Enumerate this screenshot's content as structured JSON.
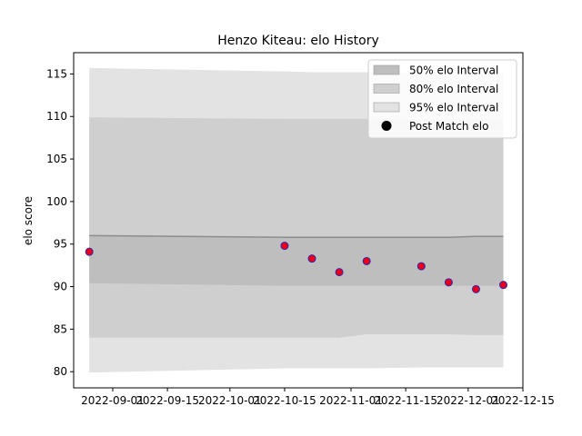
{
  "chart_data": {
    "type": "interval-scatter",
    "title": "Henzo Kiteau: elo History",
    "ylabel": "elo score",
    "x": [
      "2022-08-26",
      "2022-10-15",
      "2022-10-22",
      "2022-10-29",
      "2022-11-05",
      "2022-11-19",
      "2022-11-26",
      "2022-12-03",
      "2022-12-10"
    ],
    "xlim": [
      "2022-08-22",
      "2022-12-15"
    ],
    "xticks": [
      "2022-09-01",
      "2022-09-15",
      "2022-10-01",
      "2022-10-15",
      "2022-11-01",
      "2022-11-15",
      "2022-12-01",
      "2022-12-15"
    ],
    "ylim": [
      78.1,
      117.5
    ],
    "yticks": [
      80,
      85,
      90,
      95,
      100,
      105,
      110,
      115
    ],
    "bands": [
      {
        "name": "95% elo Interval",
        "color": "#e3e3e3",
        "lower": [
          79.9,
          80.4,
          80.4,
          80.4,
          80.4,
          80.5,
          80.5,
          80.5,
          80.5
        ],
        "upper": [
          115.7,
          115.3,
          115.2,
          115.2,
          115.2,
          115.2,
          115.2,
          115.2,
          115.2
        ]
      },
      {
        "name": "80% elo Interval",
        "color": "#cfcfcf",
        "lower": [
          84.0,
          84.0,
          84.0,
          84.0,
          84.4,
          84.4,
          84.4,
          84.3,
          84.3
        ],
        "upper": [
          109.9,
          109.7,
          109.7,
          109.7,
          109.7,
          109.7,
          109.7,
          109.7,
          109.7
        ]
      },
      {
        "name": "50% elo Interval",
        "color": "#bebebe",
        "lower": [
          90.4,
          90.1,
          90.1,
          90.1,
          90.1,
          90.1,
          90.1,
          90.1,
          90.1
        ],
        "upper": [
          96.0,
          95.8,
          95.8,
          95.8,
          95.8,
          95.8,
          95.8,
          95.9,
          95.9
        ]
      }
    ],
    "mean": [
      96.0,
      95.8,
      95.8,
      95.8,
      95.8,
      95.8,
      95.8,
      95.9,
      95.9
    ],
    "mean_color": "#8c8c8c",
    "series": [
      {
        "name": "Post Match elo",
        "color": "#e8001c",
        "edge_color": "#2a2ab0",
        "values": [
          94.1,
          94.8,
          93.3,
          91.7,
          93.0,
          92.4,
          90.5,
          89.7,
          90.2
        ]
      }
    ],
    "legend": "upper right"
  }
}
